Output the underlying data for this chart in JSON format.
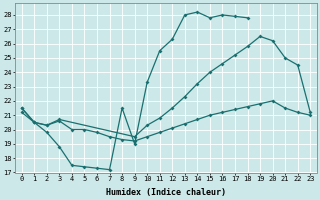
{
  "xlabel": "Humidex (Indice chaleur)",
  "bg_color": "#cce8e8",
  "line_color": "#1a7070",
  "xlim": [
    -0.5,
    23.5
  ],
  "ylim": [
    17,
    28.8
  ],
  "yticks": [
    17,
    18,
    19,
    20,
    21,
    22,
    23,
    24,
    25,
    26,
    27,
    28
  ],
  "xticks": [
    0,
    1,
    2,
    3,
    4,
    5,
    6,
    7,
    8,
    9,
    10,
    11,
    12,
    13,
    14,
    15,
    16,
    17,
    18,
    19,
    20,
    21,
    22,
    23
  ],
  "line1_x": [
    0,
    1,
    2,
    3,
    4,
    5,
    6,
    7,
    8,
    9,
    10,
    11,
    12,
    13,
    14,
    15,
    16,
    17,
    18
  ],
  "line1_y": [
    21.5,
    20.5,
    19.8,
    18.8,
    17.5,
    17.4,
    17.3,
    17.2,
    21.5,
    19.0,
    23.3,
    25.5,
    26.3,
    28.0,
    28.2,
    27.8,
    28.0,
    27.9,
    27.8
  ],
  "line2_x": [
    0,
    1,
    2,
    3,
    9,
    10,
    11,
    12,
    13,
    14,
    15,
    16,
    17,
    18,
    19,
    20,
    21,
    22,
    23
  ],
  "line2_y": [
    21.5,
    20.5,
    20.3,
    20.7,
    19.5,
    20.3,
    20.8,
    21.5,
    22.3,
    23.2,
    24.0,
    24.6,
    25.2,
    25.8,
    26.5,
    26.2,
    25.0,
    24.5,
    21.2
  ],
  "line3_x": [
    0,
    1,
    2,
    3,
    4,
    5,
    6,
    7,
    8,
    9,
    10,
    11,
    12,
    13,
    14,
    15,
    16,
    17,
    18,
    19,
    20,
    21,
    22,
    23
  ],
  "line3_y": [
    21.2,
    20.5,
    20.3,
    20.6,
    20.0,
    20.0,
    19.8,
    19.5,
    19.3,
    19.2,
    19.5,
    19.8,
    20.1,
    20.4,
    20.7,
    21.0,
    21.2,
    21.4,
    21.6,
    21.8,
    22.0,
    21.5,
    21.2,
    21.0
  ]
}
